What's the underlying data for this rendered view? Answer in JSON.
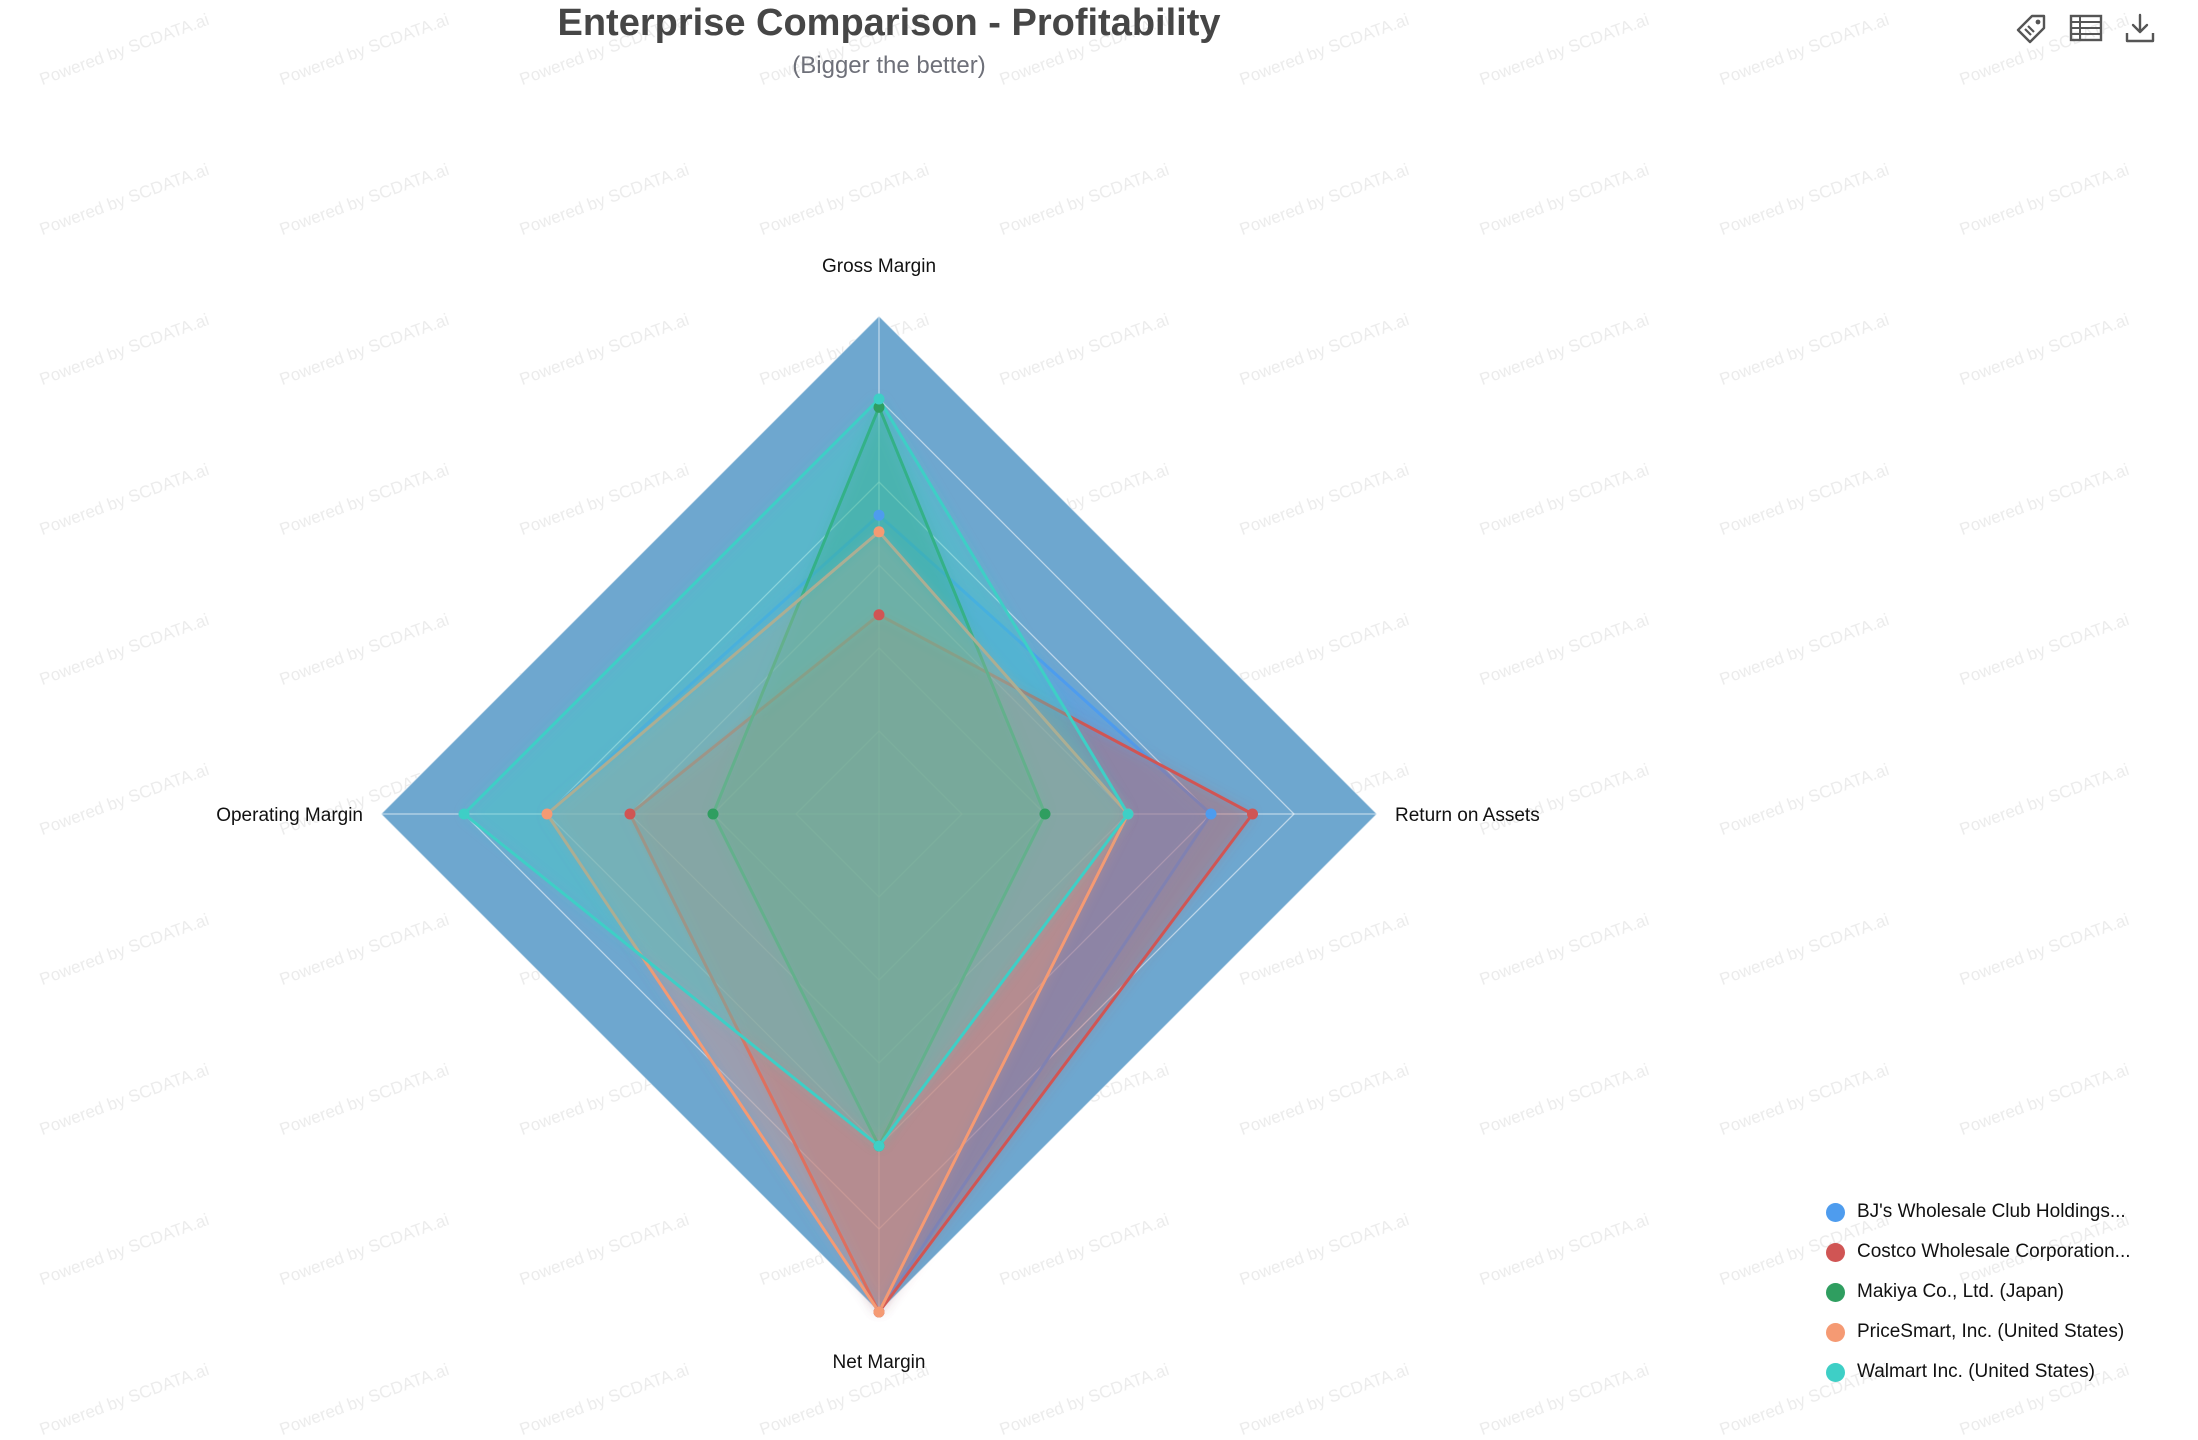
{
  "title": "Enterprise Comparison - Profitability",
  "subtitle": "(Bigger the better)",
  "watermark_text": "Powered by SCDATA.ai",
  "toolbar": [
    {
      "name": "tag-icon"
    },
    {
      "name": "data-table-icon"
    },
    {
      "name": "download-icon"
    }
  ],
  "chart_data": {
    "type": "radar",
    "indicators": [
      "Gross Margin",
      "Return on Assets",
      "Net Margin",
      "Operating Margin"
    ],
    "max": 6,
    "split_number": 6,
    "legend_position": "bottom-right",
    "background_color": "#6ea7cf",
    "series": [
      {
        "name": "BJ's Wholesale Club Holdings...",
        "color": "#4e9cee",
        "values": [
          3.6,
          4.0,
          6.0,
          4.0
        ]
      },
      {
        "name": "Costco Wholesale Corporation...",
        "color": "#d05554",
        "values": [
          2.4,
          4.5,
          6.0,
          3.0
        ]
      },
      {
        "name": "Makiya Co., Ltd. (Japan)",
        "color": "#2f9e60",
        "values": [
          4.9,
          2.0,
          4.0,
          2.0
        ]
      },
      {
        "name": "PriceSmart, Inc. (United States)",
        "color": "#f59a73",
        "values": [
          3.4,
          3.0,
          6.0,
          4.0
        ]
      },
      {
        "name": "Walmart Inc. (United States)",
        "color": "#3ecfc6",
        "values": [
          5.0,
          3.0,
          4.0,
          5.0
        ]
      }
    ]
  }
}
